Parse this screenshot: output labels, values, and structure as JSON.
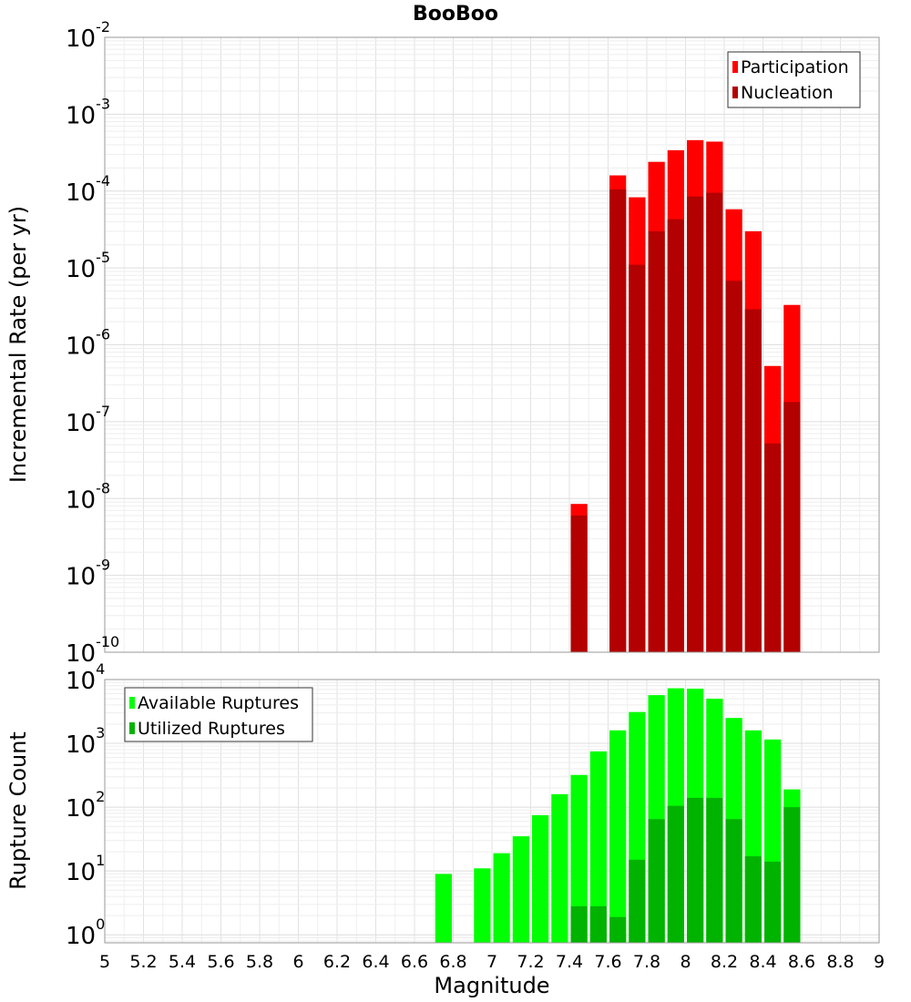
{
  "title": "BooBoo",
  "chart_data": [
    {
      "type": "bar",
      "title": "BooBoo",
      "xlabel": "Magnitude",
      "ylabel": "Incremental Rate (per yr)",
      "yscale": "log",
      "ylim": [
        1e-10,
        0.01
      ],
      "xlim": [
        5,
        9
      ],
      "grid": true,
      "legend_position": "top-right",
      "x_ticks": [
        "5",
        "5.2",
        "5.4",
        "5.6",
        "5.8",
        "6",
        "6.2",
        "6.4",
        "6.6",
        "6.8",
        "7",
        "7.2",
        "7.4",
        "7.6",
        "7.8",
        "8",
        "8.2",
        "8.4",
        "8.6",
        "8.8",
        "9"
      ],
      "y_tick_base": "10",
      "y_tick_exponents": [
        "-10",
        "-9",
        "-8",
        "-7",
        "-6",
        "-5",
        "-4",
        "-3",
        "-2"
      ],
      "x": [
        7.45,
        7.65,
        7.75,
        7.85,
        7.95,
        8.05,
        8.15,
        8.25,
        8.35,
        8.45,
        8.55
      ],
      "series": [
        {
          "name": "Participation",
          "color": "#ff0000",
          "values": [
            8.5e-09,
            0.00016,
            8.3e-05,
            0.00024,
            0.00034,
            0.00046,
            0.00044,
            5.8e-05,
            3e-05,
            5.3e-07,
            3.3e-06
          ]
        },
        {
          "name": "Nucleation",
          "color": "#b30000",
          "values": [
            6e-09,
            0.000105,
            1.1e-05,
            3e-05,
            4.3e-05,
            8.5e-05,
            9.5e-05,
            6.8e-06,
            2.9e-06,
            5.2e-08,
            1.8e-07
          ]
        }
      ]
    },
    {
      "type": "bar",
      "xlabel": "Magnitude",
      "ylabel": "Rupture Count",
      "yscale": "log",
      "ylim": [
        0.75,
        10000
      ],
      "xlim": [
        5,
        9
      ],
      "grid": true,
      "legend_position": "top-left",
      "x_ticks": [
        "5",
        "5.2",
        "5.4",
        "5.6",
        "5.8",
        "6",
        "6.2",
        "6.4",
        "6.6",
        "6.8",
        "7",
        "7.2",
        "7.4",
        "7.6",
        "7.8",
        "8",
        "8.2",
        "8.4",
        "8.6",
        "8.8",
        "9"
      ],
      "y_tick_base": "10",
      "y_tick_exponents": [
        "0",
        "1",
        "2",
        "3",
        "4"
      ],
      "x": [
        6.75,
        6.95,
        7.05,
        7.15,
        7.25,
        7.35,
        7.45,
        7.55,
        7.65,
        7.75,
        7.85,
        7.95,
        8.05,
        8.15,
        8.25,
        8.35,
        8.45,
        8.55
      ],
      "series": [
        {
          "name": "Available Ruptures",
          "color": "#00ff00",
          "values": [
            9,
            11,
            19,
            35,
            75,
            160,
            320,
            750,
            1600,
            3100,
            5700,
            7300,
            7200,
            5000,
            2500,
            1600,
            1150,
            190
          ]
        },
        {
          "name": "Utilized Ruptures",
          "color": "#00b300",
          "values": [
            null,
            null,
            null,
            null,
            null,
            null,
            2.8,
            2.8,
            1.9,
            15,
            65,
            105,
            140,
            140,
            65,
            17,
            14,
            100
          ]
        }
      ]
    }
  ]
}
